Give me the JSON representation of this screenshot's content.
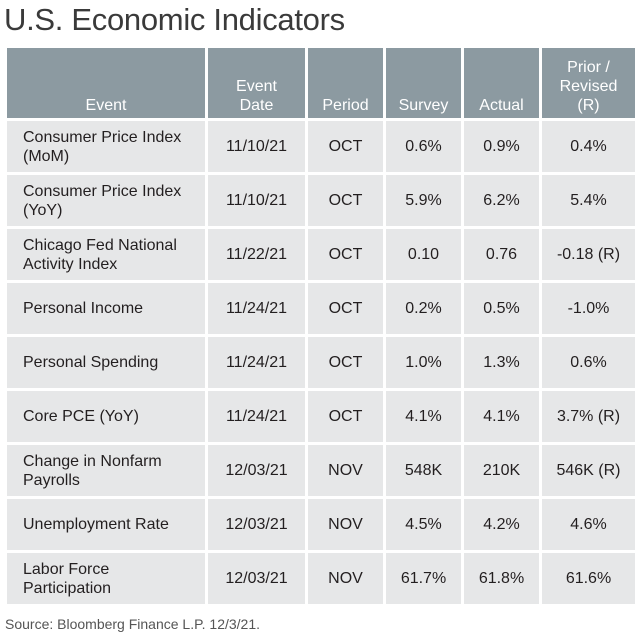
{
  "title": "U.S. Economic Indicators",
  "table": {
    "headers": {
      "event": "Event",
      "event_date": "Event Date",
      "period": "Period",
      "survey": "Survey",
      "actual": "Actual",
      "prior": "Prior / Revised (R)"
    },
    "rows": [
      {
        "event": "Consumer Price Index (MoM)",
        "date": "11/10/21",
        "period": "OCT",
        "survey": "0.6%",
        "actual": "0.9%",
        "prior": "0.4%"
      },
      {
        "event": "Consumer Price Index (YoY)",
        "date": "11/10/21",
        "period": "OCT",
        "survey": "5.9%",
        "actual": "6.2%",
        "prior": "5.4%"
      },
      {
        "event": "Chicago Fed National Activity Index",
        "date": "11/22/21",
        "period": "OCT",
        "survey": "0.10",
        "actual": "0.76",
        "prior": "-0.18 (R)"
      },
      {
        "event": "Personal Income",
        "date": "11/24/21",
        "period": "OCT",
        "survey": "0.2%",
        "actual": "0.5%",
        "prior": "-1.0%"
      },
      {
        "event": "Personal Spending",
        "date": "11/24/21",
        "period": "OCT",
        "survey": "1.0%",
        "actual": "1.3%",
        "prior": "0.6%"
      },
      {
        "event": "Core PCE (YoY)",
        "date": "11/24/21",
        "period": "OCT",
        "survey": "4.1%",
        "actual": "4.1%",
        "prior": "3.7% (R)"
      },
      {
        "event": "Change in Nonfarm Payrolls",
        "date": "12/03/21",
        "period": "NOV",
        "survey": "548K",
        "actual": "210K",
        "prior": "546K (R)"
      },
      {
        "event": "Unemployment Rate",
        "date": "12/03/21",
        "period": "NOV",
        "survey": "4.5%",
        "actual": "4.2%",
        "prior": "4.6%"
      },
      {
        "event": "Labor Force Participation",
        "date": "12/03/21",
        "period": "NOV",
        "survey": "61.7%",
        "actual": "61.8%",
        "prior": "61.6%"
      }
    ]
  },
  "source": "Source: Bloomberg Finance L.P. 12/3/21."
}
